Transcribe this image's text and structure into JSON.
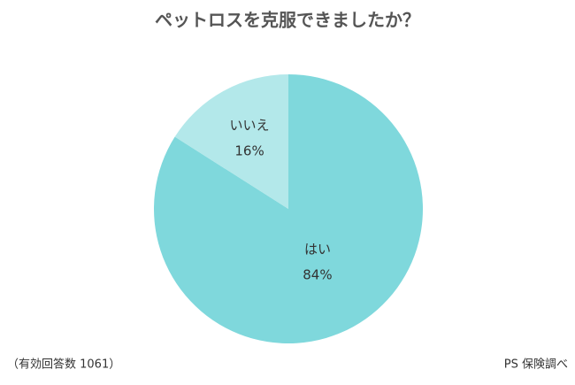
{
  "chart_data": {
    "type": "pie",
    "title": "ペットロスを克服できましたか？",
    "categories": [
      "はい",
      "いいえ"
    ],
    "values": [
      84,
      16
    ],
    "value_labels": [
      "84%",
      "16%"
    ],
    "colors": [
      "#7fd8dc",
      "#b3e8ea"
    ],
    "annotations": [
      "（有効回答数 1061）",
      "PS 保険調べ"
    ]
  }
}
